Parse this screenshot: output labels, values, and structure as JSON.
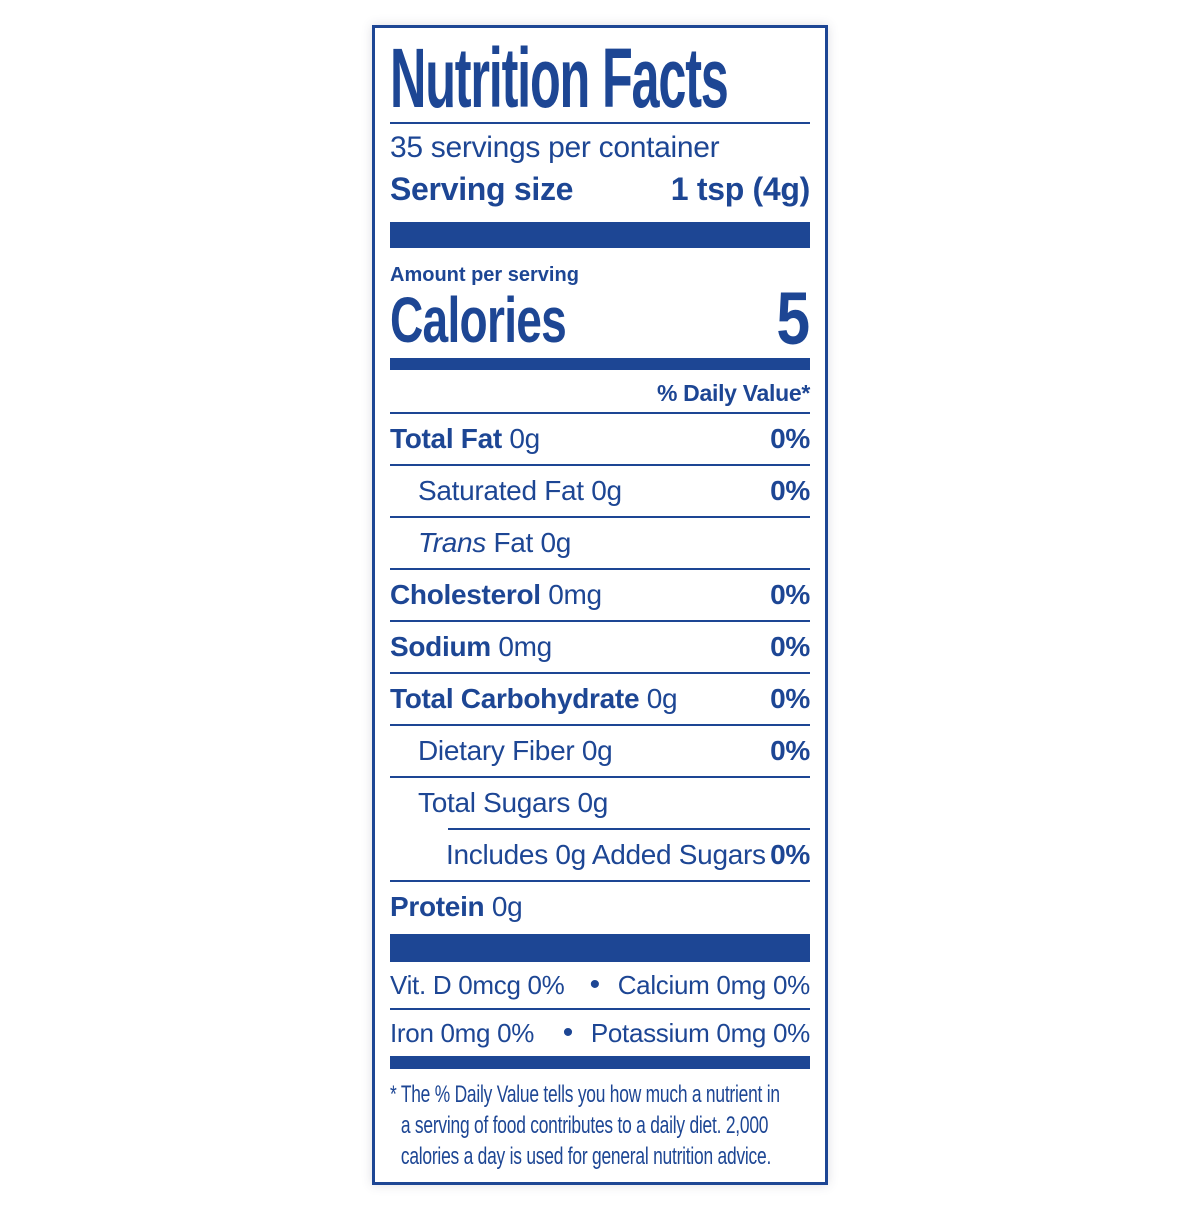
{
  "label": {
    "title": "Nutrition Facts",
    "servings_per_container": "35 servings per container",
    "serving_size_label": "Serving size",
    "serving_size_value": "1 tsp (4g)",
    "amount_per_serving": "Amount per serving",
    "calories_label": "Calories",
    "calories_value": "5",
    "daily_value_header": "% Daily Value*",
    "nutrient_rows": [
      {
        "bold": "Total Fat",
        "text": "0g",
        "dv": "0%",
        "indent": 0
      },
      {
        "text": "Saturated Fat 0g",
        "dv": "0%",
        "indent": 1
      },
      {
        "italic": "Trans",
        "text": "Fat 0g",
        "dv": "",
        "indent": 1
      },
      {
        "bold": "Cholesterol",
        "text": "0mg",
        "dv": "0%",
        "indent": 0
      },
      {
        "bold": "Sodium",
        "text": "0mg",
        "dv": "0%",
        "indent": 0
      },
      {
        "bold": "Total Carbohydrate",
        "text": "0g",
        "dv": "0%",
        "indent": 0
      },
      {
        "text": "Dietary Fiber 0g",
        "dv": "0%",
        "indent": 1
      },
      {
        "text": "Total Sugars 0g",
        "dv": "",
        "indent": 1,
        "divider_after": "indented"
      },
      {
        "text": "Includes 0g Added Sugars",
        "dv": "0%",
        "indent": 2
      },
      {
        "bold": "Protein",
        "text": "0g",
        "dv": "",
        "indent": 0,
        "divider_after": "none"
      }
    ],
    "micronutrients": [
      {
        "left": "Vit. D 0mcg 0%",
        "separator": "•",
        "right": "Calcium 0mg 0%"
      },
      {
        "left": "Iron 0mg 0%",
        "separator": "•",
        "right": "Potassium 0mg 0%"
      }
    ],
    "footnote_lines": [
      "* The % Daily Value tells you how much a nutrient in",
      "a serving of food contributes to a daily diet. 2,000",
      "calories a day is used for general nutrition advice."
    ],
    "colors": {
      "blue": "#1d4694",
      "background": "#ffffff"
    }
  }
}
